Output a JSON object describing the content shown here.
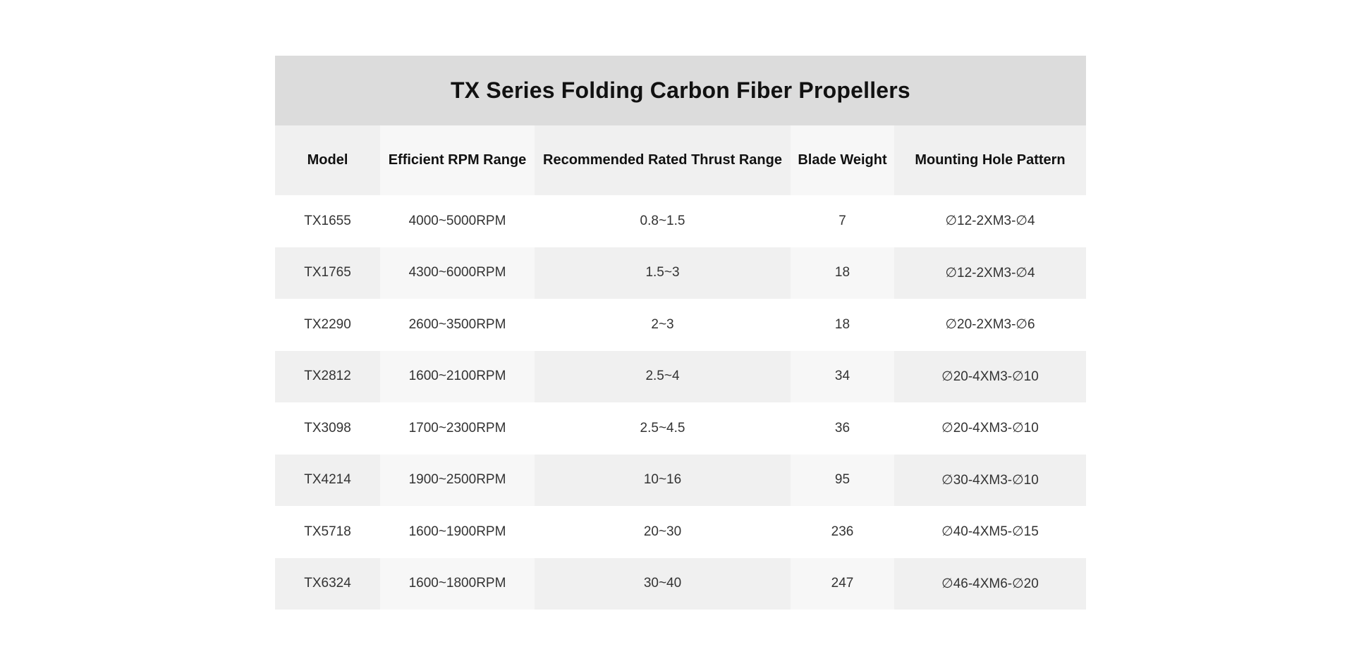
{
  "table": {
    "title": "TX Series Folding Carbon Fiber Propellers",
    "headers": [
      "Model",
      "Efficient RPM Range",
      "Recommended Rated Thrust Range",
      "Blade Weight",
      "Mounting Hole Pattern"
    ],
    "rows": [
      [
        "TX1655",
        "4000~5000RPM",
        "0.8~1.5",
        "7",
        "∅12-2XM3-∅4"
      ],
      [
        "TX1765",
        "4300~6000RPM",
        "1.5~3",
        "18",
        "∅12-2XM3-∅4"
      ],
      [
        "TX2290",
        "2600~3500RPM",
        "2~3",
        "18",
        "∅20-2XM3-∅6"
      ],
      [
        "TX2812",
        "1600~2100RPM",
        "2.5~4",
        "34",
        "∅20-4XM3-∅10"
      ],
      [
        "TX3098",
        "1700~2300RPM",
        "2.5~4.5",
        "36",
        "∅20-4XM3-∅10"
      ],
      [
        "TX4214",
        "1900~2500RPM",
        "10~16",
        "95",
        "∅30-4XM3-∅10"
      ],
      [
        "TX5718",
        "1600~1900RPM",
        "20~30",
        "236",
        "∅40-4XM5-∅15"
      ],
      [
        "TX6324",
        "1600~1800RPM",
        "30~40",
        "247",
        "∅46-4XM6-∅20"
      ]
    ]
  }
}
